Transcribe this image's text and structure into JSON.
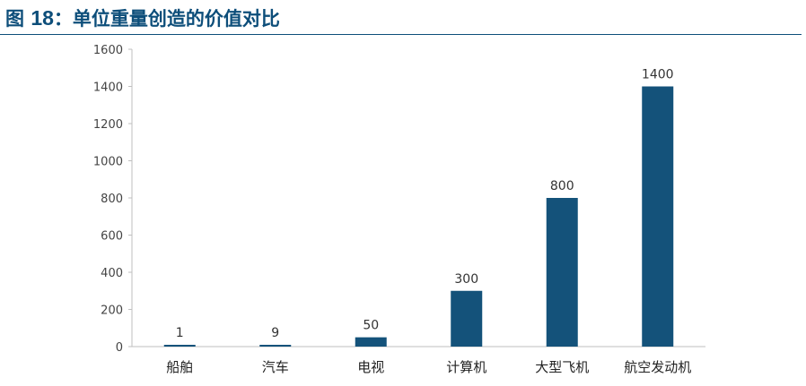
{
  "figure": {
    "prefix": "图",
    "number": "18",
    "separator": "：",
    "caption": "单位重量创造的价值对比"
  },
  "colors": {
    "bar": "#14527a",
    "axis": "#bfbfbf",
    "title": "#0d4e7a"
  },
  "chart_data": {
    "type": "bar",
    "title": "",
    "xlabel": "",
    "ylabel": "",
    "categories": [
      "船舶",
      "汽车",
      "电视",
      "计算机",
      "大型飞机",
      "航空发动机"
    ],
    "values": [
      1,
      9,
      50,
      300,
      800,
      1400
    ],
    "data_labels": [
      "1",
      "9",
      "50",
      "300",
      "800",
      "1400"
    ],
    "ylim": [
      0,
      1600
    ],
    "yticks": [
      0,
      200,
      400,
      600,
      800,
      1000,
      1200,
      1400,
      1600
    ],
    "grid": false,
    "legend": "none"
  }
}
